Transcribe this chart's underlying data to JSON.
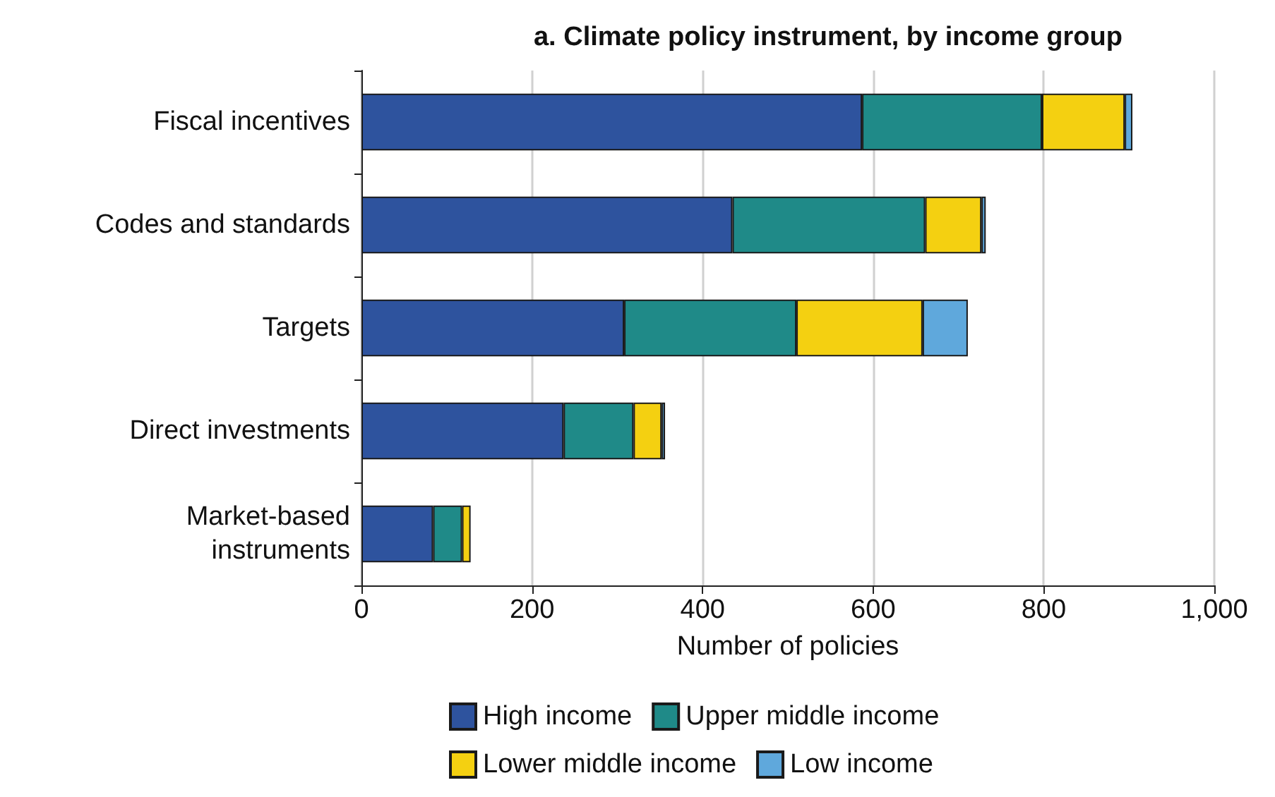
{
  "chart_data": {
    "type": "bar",
    "orientation": "horizontal",
    "stacked": true,
    "title": "a. Climate policy instrument, by income group",
    "xlabel": "Number of policies",
    "categories": [
      "Fiscal incentives",
      "Codes and standards",
      "Targets",
      "Direct investments",
      "Market-based\ninstruments"
    ],
    "series": [
      {
        "name": "High income",
        "color": "#2e539e",
        "values": [
          587,
          435,
          308,
          237,
          84
        ]
      },
      {
        "name": "Upper middle income",
        "color": "#1f8a88",
        "values": [
          211,
          226,
          202,
          82,
          34
        ]
      },
      {
        "name": "Lower middle income",
        "color": "#f4d011",
        "values": [
          97,
          66,
          148,
          33,
          10
        ]
      },
      {
        "name": "Low income",
        "color": "#5fa8dc",
        "values": [
          9,
          5,
          53,
          4,
          0
        ]
      }
    ],
    "xlim": [
      0,
      1000
    ],
    "xticks": [
      0,
      200,
      400,
      600,
      800,
      {
        "value": 1000,
        "label": "1,000"
      }
    ],
    "grid": "x",
    "legend": "bottom"
  }
}
